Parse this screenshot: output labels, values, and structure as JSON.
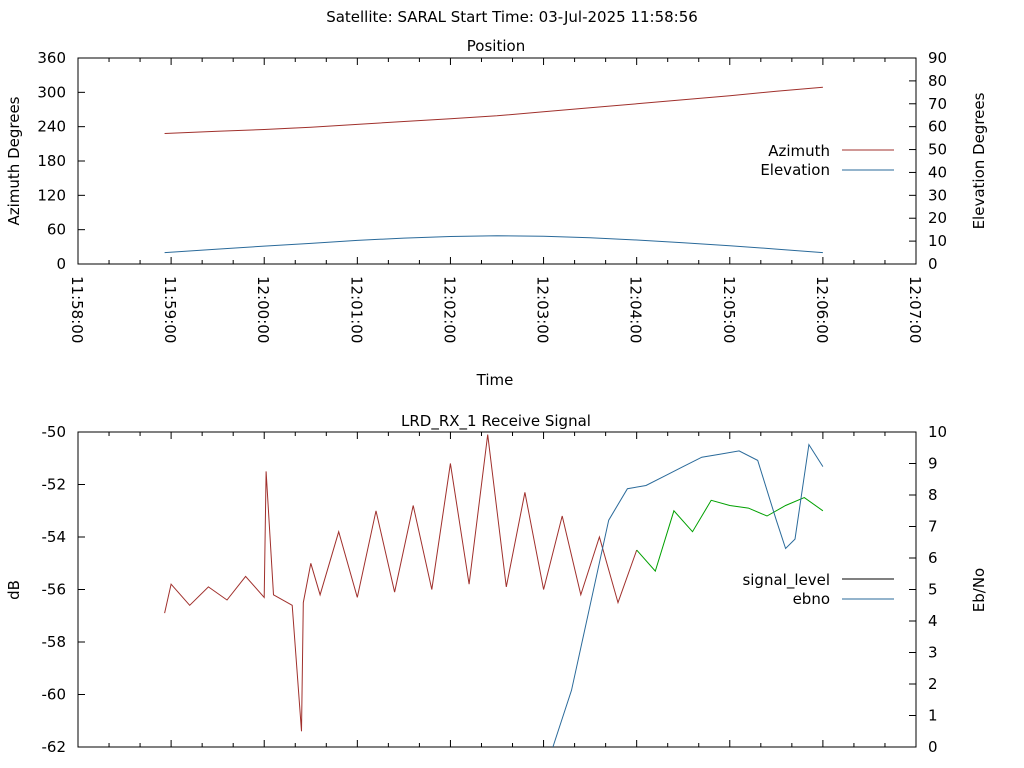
{
  "page_title": "Satellite: SARAL     Start Time: 03-Jul-2025 11:58:56",
  "colors": {
    "azimuth": "#a0302c",
    "elevation": "#2a6a9a",
    "signal_level_red": "#a0302c",
    "signal_level_green": "#00a000",
    "signal_level_legend": "#000000",
    "ebno": "#2a6a9a"
  },
  "chart_data": [
    {
      "type": "line",
      "title": "Position",
      "xlabel": "Time",
      "ylabel": "Azimuth Degrees",
      "y2label": "Elevation Degrees",
      "x_ticks": [
        "11:58:00",
        "11:59:00",
        "12:00:00",
        "12:01:00",
        "12:02:00",
        "12:03:00",
        "12:04:00",
        "12:05:00",
        "12:06:00",
        "12:07:00"
      ],
      "y_ticks": [
        "0",
        "60",
        "120",
        "180",
        "240",
        "300",
        "360"
      ],
      "y2_ticks": [
        "0",
        "10",
        "20",
        "30",
        "40",
        "50",
        "60",
        "70",
        "80",
        "90"
      ],
      "ylim": [
        0,
        360
      ],
      "y2lim": [
        0,
        90
      ],
      "legend_position": "right",
      "series": [
        {
          "name": "Azimuth",
          "axis": "y",
          "x_minutes": [
            0.93,
            1.5,
            2.0,
            2.5,
            3.0,
            3.5,
            4.0,
            4.5,
            5.0,
            5.5,
            6.0,
            6.5,
            7.0,
            7.5,
            8.0
          ],
          "values": [
            228,
            232,
            235,
            239,
            244,
            249,
            254,
            259,
            266,
            273,
            280,
            287,
            294,
            302,
            309
          ]
        },
        {
          "name": "Elevation",
          "axis": "y2",
          "x_minutes": [
            0.93,
            1.5,
            2.0,
            2.5,
            3.0,
            3.5,
            4.0,
            4.5,
            5.0,
            5.5,
            6.0,
            6.5,
            7.0,
            7.5,
            8.0
          ],
          "values": [
            5,
            6.5,
            7.8,
            9,
            10.3,
            11.3,
            12,
            12.3,
            12.1,
            11.5,
            10.5,
            9.3,
            8,
            6.5,
            5
          ]
        }
      ]
    },
    {
      "type": "line",
      "title": "LRD_RX_1 Receive Signal",
      "xlabel": "",
      "ylabel": "dB",
      "y2label": "Eb/No",
      "y_ticks": [
        "-62",
        "-60",
        "-58",
        "-56",
        "-54",
        "-52",
        "-50"
      ],
      "y2_ticks": [
        "0",
        "1",
        "2",
        "3",
        "4",
        "5",
        "6",
        "7",
        "8",
        "9",
        "10"
      ],
      "ylim": [
        -62,
        -50
      ],
      "y2lim": [
        0,
        10
      ],
      "legend_position": "right",
      "series": [
        {
          "name": "signal_level",
          "axis": "y",
          "x_minutes": [
            0.93,
            1.0,
            1.2,
            1.4,
            1.6,
            1.8,
            2.0,
            2.02,
            2.1,
            2.3,
            2.4,
            2.42,
            2.5,
            2.6,
            2.8,
            3.0,
            3.2,
            3.4,
            3.6,
            3.8,
            4.0,
            4.2,
            4.4,
            4.6,
            4.8,
            5.0,
            5.2,
            5.4,
            5.6,
            5.8,
            6.0,
            6.2,
            6.4,
            6.6,
            6.8,
            7.0,
            7.2,
            7.4,
            7.6,
            7.8,
            8.0
          ],
          "values": [
            -56.9,
            -55.8,
            -56.6,
            -55.9,
            -56.4,
            -55.5,
            -56.3,
            -51.5,
            -56.2,
            -56.6,
            -61.4,
            -56.5,
            -55.0,
            -56.2,
            -53.8,
            -56.3,
            -53.0,
            -56.1,
            -52.8,
            -56.0,
            -51.2,
            -55.8,
            -50.1,
            -55.9,
            -52.3,
            -56.0,
            -53.2,
            -56.2,
            -54.0,
            -56.5,
            -54.5,
            -55.3,
            -53.0,
            -53.8,
            -52.6,
            -52.8,
            -52.9,
            -53.2,
            -52.8,
            -52.5,
            -53.0
          ],
          "segment_colors": "red before 12:03:55, green after"
        },
        {
          "name": "ebno",
          "axis": "y2",
          "x_minutes": [
            5.1,
            5.3,
            5.5,
            5.7,
            5.9,
            6.1,
            6.3,
            6.5,
            6.7,
            6.9,
            7.1,
            7.3,
            7.5,
            7.6,
            7.7,
            7.85,
            8.0
          ],
          "values": [
            0,
            1.8,
            4.5,
            7.2,
            8.2,
            8.3,
            8.6,
            8.9,
            9.2,
            9.3,
            9.4,
            9.1,
            7.2,
            6.3,
            6.6,
            9.6,
            8.9
          ]
        }
      ]
    }
  ]
}
